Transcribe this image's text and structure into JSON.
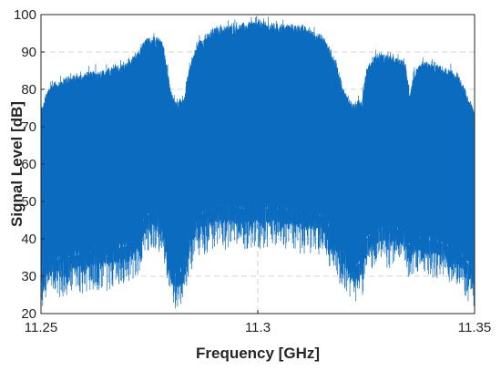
{
  "chart_data": {
    "type": "area",
    "xlabel": "Frequency [GHz]",
    "ylabel": "Signal Level [dB]",
    "xlim": [
      11.25,
      11.35
    ],
    "ylim": [
      20,
      100
    ],
    "xticks": [
      "11.25",
      "11.3",
      "11.35"
    ],
    "yticks": [
      "20",
      "30",
      "40",
      "50",
      "60",
      "70",
      "80",
      "90",
      "100"
    ],
    "grid": true,
    "series": [
      {
        "color": "#0b6bbf",
        "x": [
          11.25,
          11.252,
          11.256,
          11.26,
          11.265,
          11.27,
          11.272,
          11.274,
          11.276,
          11.278,
          11.279,
          11.28,
          11.281,
          11.283,
          11.284,
          11.286,
          11.29,
          11.295,
          11.3,
          11.305,
          11.31,
          11.315,
          11.318,
          11.32,
          11.322,
          11.324,
          11.325,
          11.327,
          11.33,
          11.334,
          11.335,
          11.336,
          11.338,
          11.342,
          11.346,
          11.35
        ],
        "upper": [
          73,
          80,
          82,
          83,
          84,
          86,
          88,
          92,
          93,
          92,
          85,
          78,
          76,
          76,
          84,
          91,
          95,
          96,
          97,
          96,
          96,
          93,
          86,
          78,
          75,
          76,
          84,
          88,
          88,
          86,
          78,
          83,
          86,
          85,
          83,
          73
        ],
        "lower": [
          30,
          32,
          33,
          34,
          35,
          36,
          38,
          44,
          45,
          44,
          36,
          30,
          28,
          30,
          38,
          44,
          46,
          46,
          46,
          46,
          45,
          44,
          38,
          34,
          30,
          32,
          38,
          40,
          41,
          40,
          36,
          38,
          38,
          37,
          35,
          29
        ],
        "floor": [
          21,
          24,
          26,
          26,
          27,
          29,
          30,
          36,
          38,
          37,
          30,
          25,
          22,
          24,
          31,
          36,
          38,
          38,
          38,
          38,
          37,
          36,
          30,
          27,
          24,
          25,
          31,
          33,
          33,
          33,
          29,
          31,
          31,
          30,
          28,
          22
        ]
      }
    ]
  }
}
